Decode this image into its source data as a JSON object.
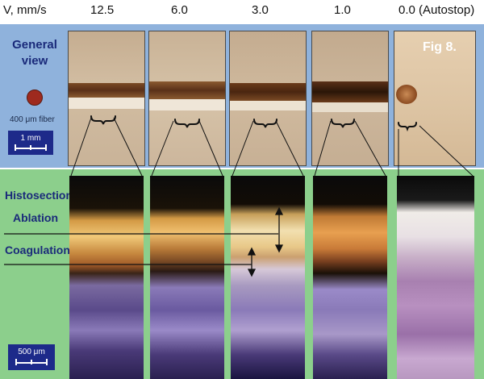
{
  "header": {
    "col0": "V, mm/s",
    "col1": "12.5",
    "col2": "6.0",
    "col3": "3.0",
    "col4": "1.0",
    "col5": "0.0 (Autostop)"
  },
  "top_panel": {
    "label_line1": "General",
    "label_line2": "view",
    "fiber_label": "400 μm fiber",
    "scale_label": "1 mm",
    "fig_label": "Fig 8."
  },
  "bottom_panel": {
    "histosection_label": "Histosection",
    "ablation_label": "Ablation",
    "coagulation_label": "Coagulation",
    "scale_label": "500 μm"
  },
  "colors": {
    "top_bg": "#8fb2dc",
    "bottom_bg": "#8ccf8c",
    "label_text": "#1a2a7a",
    "fiber_dot": "#9e2a1e"
  }
}
